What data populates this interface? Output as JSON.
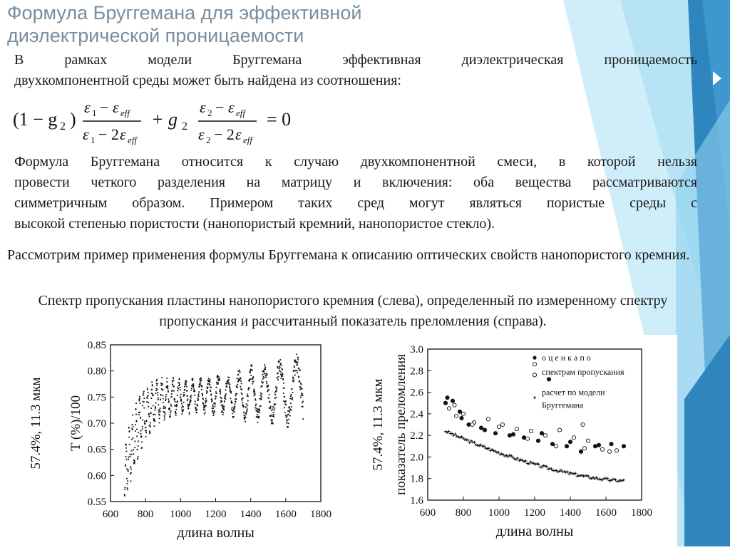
{
  "slide": {
    "title_line1": "Формула Бруггемана для эффективной",
    "title_line2": "диэлектрической проницаемости",
    "p1_line1": "В рамках модели Бруггемана эффективная диэлектрическая проницаемость",
    "p1_line2": "двухкомпонентной среды может быть найдена из соотношения:",
    "p2_lines": [
      "Формула Бруггемана относится к случаю двухкомпонентной смеси, в которой нельзя",
      "провести четкого разделения на матрицу и включения: оба вещества рассматриваются",
      "симметричным образом. Примером таких сред могут являться пористые среды с",
      "высокой степенью пористости (нанопористый кремний, нанопористое стекло)."
    ],
    "p3": "Рассмотрим пример применения формулы Бруггемана к описанию оптических свойств нанопористого кремния.",
    "p4": "Спектр пропускания пластины нанопористого кремния (слева), определенный по измеренному спектру пропускания и рассчитанный показатель преломления (справа).",
    "accent_color": "#2e7fb8",
    "accent_light": "#8fd0ef"
  },
  "formula": {
    "open_term": "(1 − g",
    "sub_2": "2",
    "close_paren": ")",
    "eps": "ε",
    "sub_1": "1",
    "sub_eff": "eff",
    "minus": "−",
    "minus2": "− 2",
    "plus_g": "+ g",
    "equals_zero": "= 0"
  },
  "chart_data": [
    {
      "type": "scatter",
      "xlabel": "длина волны",
      "ylabel": "T (%)/100",
      "ylabel_prefix": "57.4%, 11.3 мкм",
      "xlim": [
        600,
        1800
      ],
      "ylim": [
        0.55,
        0.85
      ],
      "xticks": [
        600,
        800,
        1000,
        1200,
        1400,
        1600,
        1800
      ],
      "yticks": [
        0.55,
        0.6,
        0.65,
        0.7,
        0.75,
        0.8,
        0.85
      ],
      "envelope_x": [
        680,
        700,
        730,
        760,
        800,
        850,
        900,
        1000,
        1100,
        1200,
        1300,
        1400,
        1500,
        1600,
        1700
      ],
      "envelope_upper": [
        0.64,
        0.68,
        0.71,
        0.74,
        0.762,
        0.772,
        0.778,
        0.78,
        0.782,
        0.785,
        0.79,
        0.798,
        0.805,
        0.812,
        0.82
      ],
      "envelope_lower": [
        0.56,
        0.585,
        0.615,
        0.645,
        0.68,
        0.705,
        0.715,
        0.725,
        0.728,
        0.725,
        0.72,
        0.715,
        0.712,
        0.71,
        0.705
      ]
    },
    {
      "type": "scatter",
      "xlabel": "длина волны",
      "ylabel": "показатель преломления",
      "ylabel_prefix": "57.4%, 11.3 мкм",
      "xlim": [
        600,
        1800
      ],
      "ylim": [
        1.6,
        3.0
      ],
      "xticks": [
        600,
        800,
        1000,
        1200,
        1400,
        1600,
        1800
      ],
      "yticks": [
        1.6,
        1.8,
        2.0,
        2.2,
        2.4,
        2.6,
        2.8,
        3.0
      ],
      "legend": [
        "о ц е н к а   п о",
        "спектрам пропускания",
        "расчет по модели",
        "Бруггемана"
      ],
      "series": [
        {
          "name": "оценка по спектрам пропускания",
          "x": [
            700,
            720,
            740,
            760,
            780,
            800,
            830,
            860,
            900,
            940,
            980,
            1020,
            1060,
            1100,
            1140,
            1180,
            1220,
            1260,
            1300,
            1340,
            1380,
            1420,
            1460,
            1500,
            1540,
            1580,
            1630,
            1660,
            710,
            750,
            790,
            850,
            920,
            1000,
            1080,
            1160,
            1240,
            1320,
            1400,
            1480,
            1560,
            1620,
            1700,
            1200,
            1280,
            1470
          ],
          "y": [
            2.5,
            2.45,
            2.52,
            2.38,
            2.42,
            2.4,
            2.3,
            2.32,
            2.27,
            2.35,
            2.22,
            2.3,
            2.2,
            2.26,
            2.18,
            2.24,
            2.15,
            2.2,
            2.12,
            2.25,
            2.1,
            2.18,
            2.05,
            2.15,
            2.1,
            2.07,
            2.12,
            2.06,
            2.55,
            2.48,
            2.36,
            2.3,
            2.25,
            2.28,
            2.21,
            2.17,
            2.22,
            2.1,
            2.14,
            2.08,
            2.11,
            2.05,
            2.1,
            2.86,
            2.72,
            2.3
          ],
          "marker": "mixed"
        },
        {
          "name": "расчет по модели Бруггемана",
          "x_start": 700,
          "x_end": 1700,
          "y_start": 2.24,
          "y_end": 1.78,
          "marker": "plus"
        }
      ]
    }
  ]
}
